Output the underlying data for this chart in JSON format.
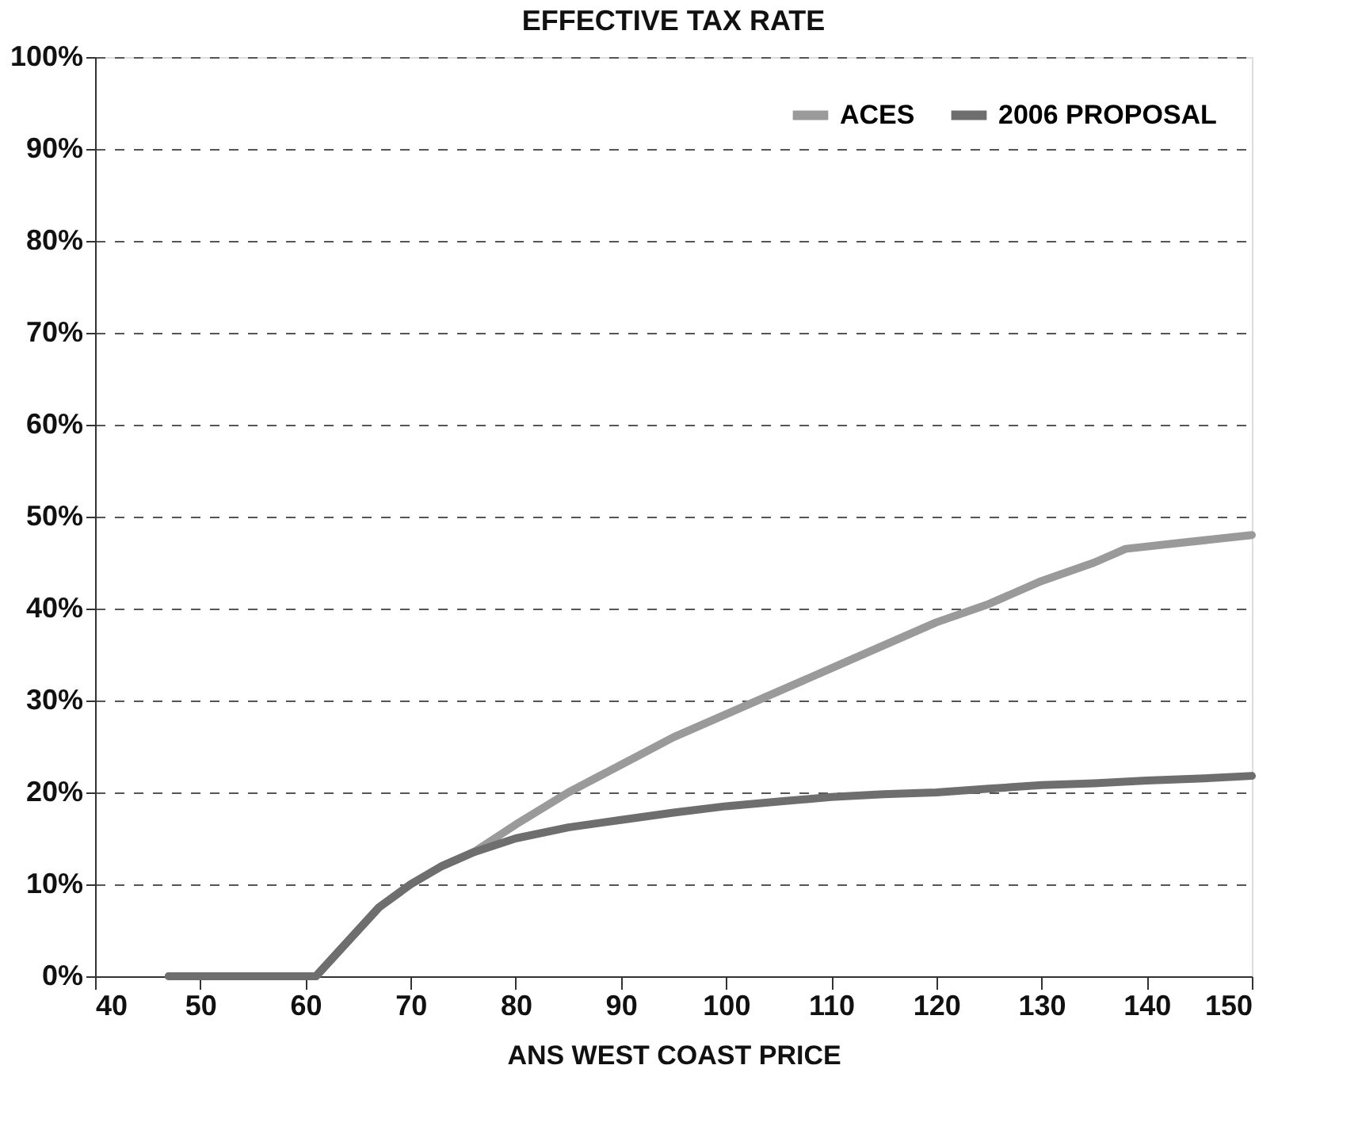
{
  "chart_data": {
    "type": "line",
    "title": "EFFECTIVE TAX RATE",
    "xlabel": "ANS WEST COAST PRICE",
    "xlim": [
      40,
      150
    ],
    "xticks": [
      40,
      50,
      60,
      70,
      80,
      90,
      100,
      110,
      120,
      130,
      140,
      150
    ],
    "ylim": [
      0,
      100
    ],
    "yticks": [
      {
        "value": 0,
        "label": "0%"
      },
      {
        "value": 10,
        "label": "10%"
      },
      {
        "value": 20,
        "label": "20%"
      },
      {
        "value": 30,
        "label": "30%"
      },
      {
        "value": 40,
        "label": "40%"
      },
      {
        "value": 50,
        "label": "50%"
      },
      {
        "value": 60,
        "label": "60%"
      },
      {
        "value": 70,
        "label": "70%"
      },
      {
        "value": 80,
        "label": "80%"
      },
      {
        "value": 90,
        "label": "90%"
      },
      {
        "value": 100,
        "label": "100%"
      }
    ],
    "grid": "y",
    "legend": "top right",
    "marker": "none",
    "line_style": "solid",
    "series": [
      {
        "name": "ACES",
        "color": "#9a9a9a",
        "x": [
          47,
          55,
          61,
          63,
          65,
          67,
          70,
          73,
          76,
          80,
          85,
          90,
          95,
          100,
          105,
          110,
          115,
          120,
          125,
          130,
          135,
          138,
          142,
          146,
          150
        ],
        "values": [
          0,
          0,
          0,
          2.5,
          5,
          7.5,
          10,
          12,
          13.5,
          16.5,
          20,
          23,
          26,
          28.5,
          31,
          33.5,
          36,
          38.5,
          40.5,
          43,
          45,
          46.5,
          47,
          47.5,
          48
        ]
      },
      {
        "name": "2006 PROPOSAL",
        "color": "#6e6e6e",
        "x": [
          47,
          55,
          61,
          63,
          65,
          67,
          70,
          73,
          76,
          80,
          85,
          90,
          95,
          100,
          105,
          110,
          115,
          120,
          125,
          130,
          135,
          140,
          145,
          150
        ],
        "values": [
          0,
          0,
          0,
          2.5,
          5,
          7.5,
          10,
          12,
          13.5,
          15,
          16.2,
          17,
          17.8,
          18.5,
          19,
          19.5,
          19.8,
          20,
          20.4,
          20.8,
          21,
          21.3,
          21.5,
          21.8
        ]
      }
    ]
  }
}
